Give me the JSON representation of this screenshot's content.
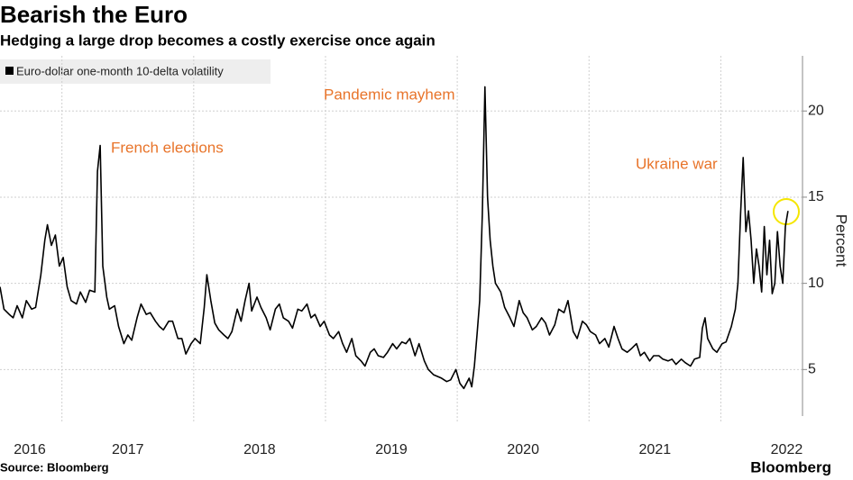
{
  "chart_data": {
    "type": "line",
    "title": "Bearish the Euro",
    "subtitle": "Hedging a large drop becomes a costly exercise once again",
    "y_label": "Percent",
    "source": "Source: Bloomberg",
    "brand": "Bloomberg",
    "grid": true,
    "annotations": [
      "French elections",
      "Pandemic mayhem",
      "Ukraine war"
    ],
    "x": [
      2016.53,
      2016.56,
      2016.6,
      2016.63,
      2016.66,
      2016.7,
      2016.73,
      2016.77,
      2016.8,
      2016.84,
      2016.87,
      2016.89,
      2016.92,
      2016.95,
      2016.98,
      2017.01,
      2017.04,
      2017.07,
      2017.11,
      2017.14,
      2017.18,
      2017.21,
      2017.25,
      2017.27,
      2017.29,
      2017.31,
      2017.34,
      2017.36,
      2017.4,
      2017.43,
      2017.47,
      2017.5,
      2017.53,
      2017.57,
      2017.6,
      2017.64,
      2017.67,
      2017.71,
      2017.74,
      2017.77,
      2017.81,
      2017.84,
      2017.88,
      2017.91,
      2017.94,
      2017.98,
      2018.01,
      2018.05,
      2018.08,
      2018.1,
      2018.13,
      2018.16,
      2018.19,
      2018.23,
      2018.26,
      2018.29,
      2018.33,
      2018.36,
      2018.39,
      2018.42,
      2018.44,
      2018.48,
      2018.51,
      2018.55,
      2018.58,
      2018.62,
      2018.65,
      2018.68,
      2018.72,
      2018.75,
      2018.79,
      2018.82,
      2018.86,
      2018.89,
      2018.92,
      2018.96,
      2018.99,
      2019.03,
      2019.06,
      2019.1,
      2019.13,
      2019.16,
      2019.2,
      2019.23,
      2019.27,
      2019.3,
      2019.34,
      2019.37,
      2019.4,
      2019.44,
      2019.47,
      2019.51,
      2019.54,
      2019.58,
      2019.61,
      2019.64,
      2019.68,
      2019.71,
      2019.75,
      2019.78,
      2019.82,
      2019.85,
      2019.88,
      2019.92,
      2019.95,
      2019.99,
      2020.02,
      2020.05,
      2020.09,
      2020.11,
      2020.13,
      2020.15,
      2020.17,
      2020.19,
      2020.21,
      2020.23,
      2020.25,
      2020.27,
      2020.29,
      2020.33,
      2020.36,
      2020.4,
      2020.43,
      2020.47,
      2020.5,
      2020.53,
      2020.57,
      2020.6,
      2020.64,
      2020.67,
      2020.7,
      2020.74,
      2020.77,
      2020.81,
      2020.84,
      2020.88,
      2020.91,
      2020.95,
      2020.98,
      2021.01,
      2021.05,
      2021.08,
      2021.12,
      2021.15,
      2021.19,
      2021.22,
      2021.25,
      2021.29,
      2021.32,
      2021.36,
      2021.39,
      2021.42,
      2021.46,
      2021.49,
      2021.53,
      2021.56,
      2021.6,
      2021.63,
      2021.66,
      2021.7,
      2021.73,
      2021.77,
      2021.8,
      2021.84,
      2021.86,
      2021.88,
      2021.9,
      2021.94,
      2021.97,
      2022.01,
      2022.04,
      2022.08,
      2022.11,
      2022.13,
      2022.15,
      2022.17,
      2022.19,
      2022.21,
      2022.23,
      2022.25,
      2022.27,
      2022.29,
      2022.31,
      2022.33,
      2022.35,
      2022.37,
      2022.39,
      2022.41,
      2022.43,
      2022.45,
      2022.47,
      2022.49,
      2022.51
    ],
    "series": [
      {
        "name": "Euro-dollar one-month 10-delta volatility",
        "color": "#000000",
        "values": [
          9.8,
          8.5,
          8.2,
          8.0,
          8.7,
          8.0,
          9.0,
          8.5,
          8.6,
          10.5,
          12.5,
          13.4,
          12.2,
          12.8,
          11.0,
          11.5,
          9.8,
          9.0,
          8.8,
          9.5,
          8.9,
          9.6,
          9.5,
          16.5,
          18.0,
          11.0,
          9.2,
          8.5,
          8.7,
          7.5,
          6.5,
          7.0,
          6.7,
          8.0,
          8.8,
          8.2,
          8.3,
          7.8,
          7.5,
          7.3,
          7.8,
          7.8,
          6.8,
          6.8,
          5.9,
          6.5,
          6.8,
          6.5,
          8.6,
          10.5,
          9.0,
          7.7,
          7.3,
          7.0,
          6.8,
          7.2,
          8.5,
          7.8,
          9.0,
          10.0,
          8.4,
          9.2,
          8.6,
          8.0,
          7.3,
          8.5,
          8.8,
          8.0,
          7.8,
          7.4,
          8.5,
          8.4,
          8.8,
          8.0,
          8.2,
          7.5,
          7.8,
          7.0,
          6.8,
          7.2,
          6.5,
          6.0,
          6.8,
          5.8,
          5.5,
          5.2,
          6.0,
          6.2,
          5.8,
          5.7,
          6.0,
          6.5,
          6.2,
          6.6,
          6.5,
          6.8,
          5.8,
          6.5,
          5.5,
          5.0,
          4.7,
          4.6,
          4.5,
          4.3,
          4.4,
          5.0,
          4.2,
          3.9,
          4.5,
          4.0,
          5.2,
          7.0,
          9.0,
          14.0,
          21.4,
          15.0,
          12.5,
          11.0,
          10.0,
          9.5,
          8.6,
          8.0,
          7.5,
          9.0,
          8.3,
          8.0,
          7.3,
          7.5,
          8.0,
          7.7,
          7.0,
          7.6,
          8.5,
          8.3,
          9.0,
          7.2,
          6.8,
          7.8,
          7.6,
          7.2,
          7.0,
          6.5,
          6.8,
          6.3,
          7.5,
          6.8,
          6.2,
          6.0,
          6.2,
          6.5,
          5.8,
          6.0,
          5.5,
          5.8,
          5.8,
          5.6,
          5.5,
          5.6,
          5.3,
          5.6,
          5.4,
          5.2,
          5.6,
          5.7,
          7.4,
          8.0,
          6.8,
          6.2,
          6.0,
          6.5,
          6.6,
          7.5,
          8.5,
          10.0,
          14.0,
          17.3,
          13.0,
          14.2,
          12.5,
          10.0,
          12.0,
          11.0,
          9.5,
          13.3,
          10.5,
          12.5,
          9.4,
          10.0,
          13.0,
          11.0,
          10.0,
          13.3,
          14.2
        ]
      }
    ],
    "xlim": [
      2016.53,
      2022.62
    ],
    "xticks": [
      2016,
      2017,
      2018,
      2019,
      2020,
      2021,
      2022
    ],
    "ylim": [
      2.3,
      23.2
    ],
    "yticks": [
      5,
      10,
      15,
      20
    ]
  }
}
